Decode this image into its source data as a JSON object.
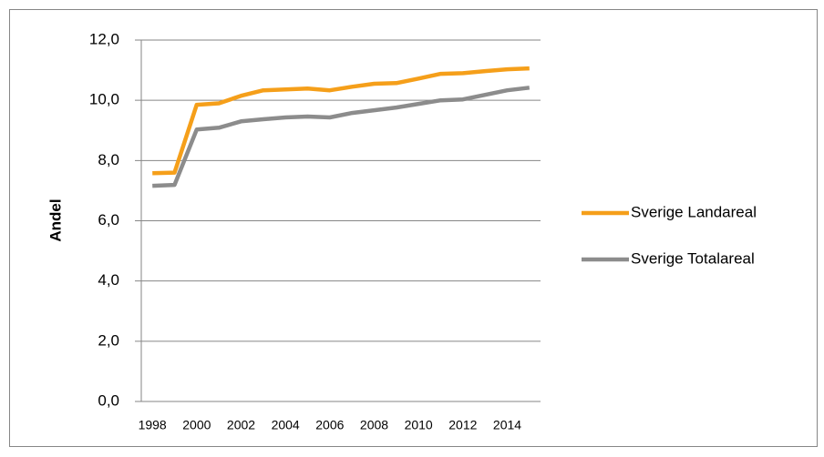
{
  "chart_data": {
    "type": "line",
    "y_label": "Andel",
    "categories": [
      "1998",
      null,
      "2000",
      null,
      "2002",
      null,
      "2004",
      null,
      "2006",
      null,
      "2008",
      null,
      "2010",
      null,
      "2012",
      null,
      "2014",
      null
    ],
    "series": [
      {
        "name": "Sverige Landareal",
        "color": "#f59f1a",
        "values": [
          7.58,
          7.6,
          9.85,
          9.9,
          10.15,
          10.33,
          10.36,
          10.39,
          10.33,
          10.45,
          10.55,
          10.57,
          10.72,
          10.88,
          10.9,
          10.97,
          11.03,
          11.06
        ]
      },
      {
        "name": "Sverige Totalareal",
        "color": "#8c8c8c",
        "values": [
          7.16,
          7.19,
          9.03,
          9.09,
          9.3,
          9.37,
          9.43,
          9.46,
          9.43,
          9.58,
          9.67,
          9.76,
          9.88,
          10.0,
          10.03,
          10.18,
          10.33,
          10.42
        ]
      }
    ],
    "ylim": [
      0,
      12
    ],
    "yticks": [
      {
        "value": 0,
        "label": "0,0"
      },
      {
        "value": 2,
        "label": "2,0"
      },
      {
        "value": 4,
        "label": "4,0"
      },
      {
        "value": 6,
        "label": "6,0"
      },
      {
        "value": 8,
        "label": "8,0"
      },
      {
        "value": 10,
        "label": "10,0"
      },
      {
        "value": 12,
        "label": "12,0"
      }
    ],
    "grid": true,
    "legend": "right"
  }
}
